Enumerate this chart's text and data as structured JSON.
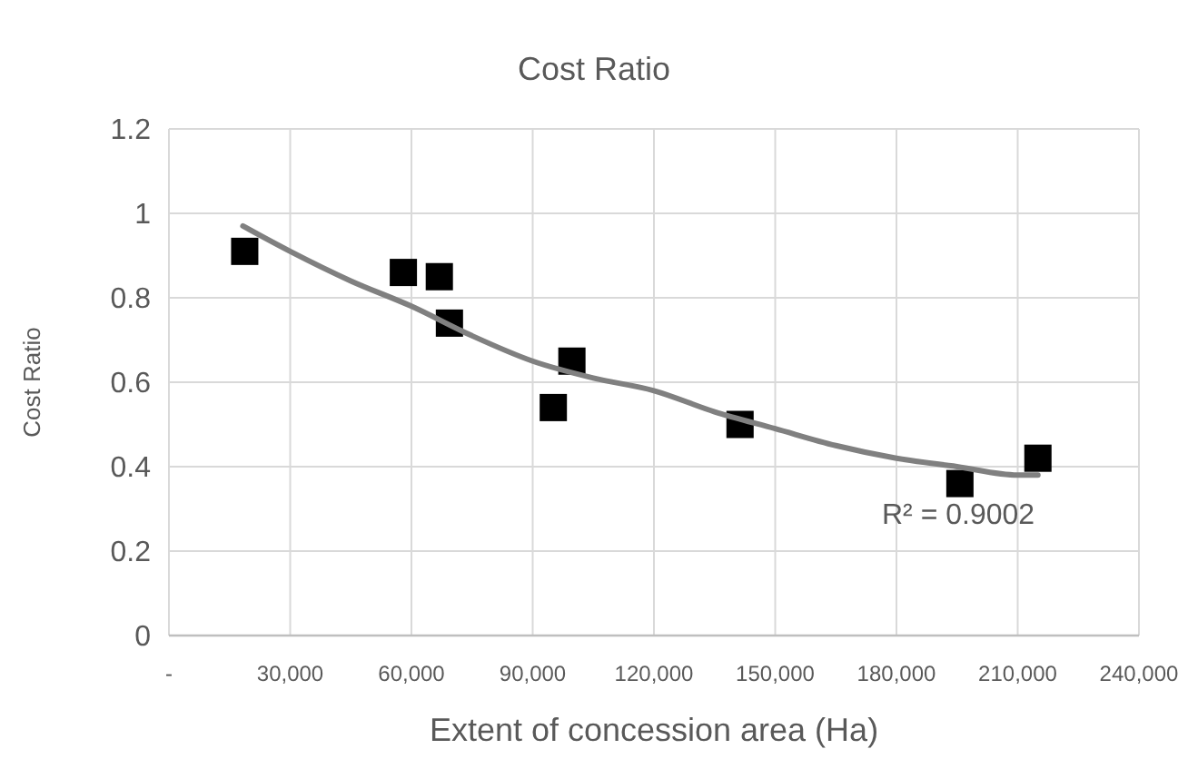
{
  "chart_data": {
    "type": "scatter",
    "title": "Cost Ratio",
    "xlabel": "Extent of concession area (Ha)",
    "ylabel": "Cost Ratio",
    "series": [
      {
        "color": "#000000",
        "marker": "square",
        "x": [
          18750,
          58000,
          66900,
          69400,
          95100,
          99700,
          141300,
          195700,
          215000
        ],
        "values": [
          0.91,
          0.86,
          0.85,
          0.74,
          0.54,
          0.65,
          0.5,
          0.36,
          0.42
        ]
      },
      {
        "type": "line",
        "color": "#808080",
        "x": [
          18300,
          30000,
          45000,
          60000,
          75000,
          90000,
          105000,
          120000,
          135000,
          150000,
          165000,
          180000,
          195000,
          210000,
          215000
        ],
        "values": [
          0.97,
          0.91,
          0.84,
          0.78,
          0.71,
          0.65,
          0.61,
          0.58,
          0.53,
          0.49,
          0.45,
          0.42,
          0.4,
          0.38,
          0.38
        ]
      }
    ],
    "xlim": [
      0,
      240000
    ],
    "xticks": [
      {
        "value": 0,
        "label": "-"
      },
      {
        "value": 30000,
        "label": "30,000"
      },
      {
        "value": 60000,
        "label": "60,000"
      },
      {
        "value": 90000,
        "label": "90,000"
      },
      {
        "value": 120000,
        "label": "120,000"
      },
      {
        "value": 150000,
        "label": "150,000"
      },
      {
        "value": 180000,
        "label": "180,000"
      },
      {
        "value": 210000,
        "label": "210,000"
      },
      {
        "value": 240000,
        "label": "240,000"
      }
    ],
    "ylim": [
      0,
      1.2
    ],
    "yticks": [
      0,
      0.2,
      0.4,
      0.6,
      0.8,
      1,
      1.2
    ],
    "grid": true,
    "annotations": [
      "R² = 0.9002"
    ]
  }
}
